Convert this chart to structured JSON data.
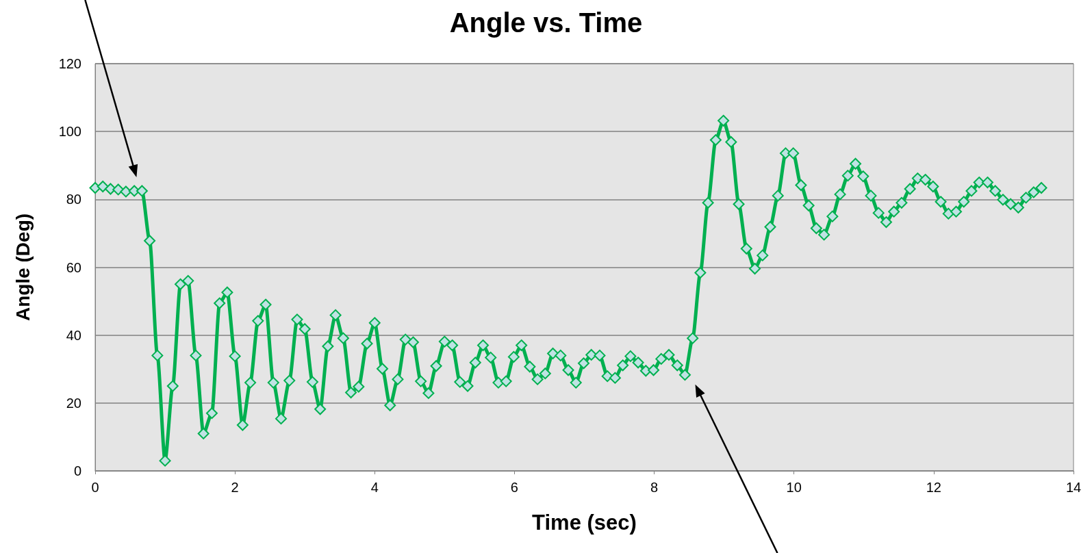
{
  "chart_data": {
    "type": "line",
    "title": "Angle vs. Time",
    "xlabel": "Time (sec)",
    "ylabel": "Angle (Deg)",
    "xlim": [
      0,
      14
    ],
    "xticks": [
      0,
      2,
      4,
      6,
      8,
      10,
      12,
      14
    ],
    "ylim": [
      0,
      120
    ],
    "yticks": [
      0,
      20,
      40,
      60,
      80,
      100,
      120
    ],
    "grid": "y",
    "marker": "diamond",
    "line_style": "solid",
    "series": [
      {
        "color": "#00b050",
        "x": [
          0,
          0.11,
          0.22,
          0.33,
          0.44,
          0.56,
          0.67,
          0.78,
          0.89,
          1.0,
          1.11,
          1.22,
          1.33,
          1.44,
          1.55,
          1.67,
          1.78,
          1.89,
          2.0,
          2.11,
          2.22,
          2.33,
          2.44,
          2.55,
          2.66,
          2.78,
          2.89,
          3.0,
          3.11,
          3.22,
          3.33,
          3.44,
          3.55,
          3.66,
          3.77,
          3.89,
          4.0,
          4.11,
          4.22,
          4.33,
          4.44,
          4.55,
          4.66,
          4.77,
          4.88,
          5.0,
          5.11,
          5.22,
          5.33,
          5.44,
          5.55,
          5.66,
          5.77,
          5.88,
          5.99,
          6.1,
          6.22,
          6.33,
          6.44,
          6.55,
          6.66,
          6.77,
          6.88,
          6.99,
          7.1,
          7.22,
          7.33,
          7.44,
          7.55,
          7.66,
          7.77,
          7.88,
          7.99,
          8.1,
          8.21,
          8.33,
          8.44,
          8.55,
          8.66,
          8.77,
          8.88,
          8.99,
          9.1,
          9.21,
          9.32,
          9.44,
          9.55,
          9.66,
          9.77,
          9.88,
          9.99,
          10.1,
          10.21,
          10.32,
          10.43,
          10.55,
          10.66,
          10.77,
          10.88,
          10.99,
          11.1,
          11.21,
          11.32,
          11.43,
          11.54,
          11.66,
          11.77,
          11.88,
          11.99,
          12.1,
          12.21,
          12.32,
          12.43,
          12.54,
          12.65,
          12.77,
          12.88,
          12.99,
          13.1,
          13.21,
          13.32,
          13.43,
          13.54
        ],
        "values": [
          83.4,
          83.8,
          83.1,
          82.9,
          82.3,
          82.5,
          82.5,
          67.8,
          34,
          3,
          25,
          55,
          56,
          34,
          11,
          17,
          49.4,
          52.6,
          33.8,
          13.5,
          26,
          44.2,
          49,
          26,
          15.4,
          26.6,
          44.6,
          41.8,
          26.2,
          18.2,
          36.7,
          45.9,
          39.1,
          23.1,
          24.8,
          37.5,
          43.6,
          30.1,
          19.3,
          27,
          38.7,
          37.9,
          26.4,
          22.9,
          30.9,
          38.1,
          37,
          26.2,
          25,
          31.9,
          37,
          33.4,
          26,
          26.4,
          33.6,
          37,
          30.7,
          27,
          28.7,
          34.6,
          34,
          29.7,
          26,
          31.7,
          34.2,
          34,
          27.9,
          27.4,
          31.1,
          33.8,
          31.9,
          29.5,
          29.7,
          33,
          34.2,
          31.1,
          28.3,
          39.1,
          58.4,
          79,
          97.5,
          103.2,
          96.9,
          78.6,
          65.5,
          59.6,
          63.5,
          71.9,
          81.1,
          93.6,
          93.6,
          84.2,
          78.2,
          71.5,
          69.6,
          75,
          81.5,
          87,
          90.5,
          86.8,
          81.1,
          76,
          73.3,
          76.4,
          79,
          83.1,
          86.2,
          85.8,
          83.8,
          79.3,
          75.8,
          76.4,
          79.3,
          82.5,
          85,
          85,
          82.5,
          79.9,
          78.6,
          77.6,
          80.5,
          82.1,
          83.4
        ]
      }
    ]
  }
}
